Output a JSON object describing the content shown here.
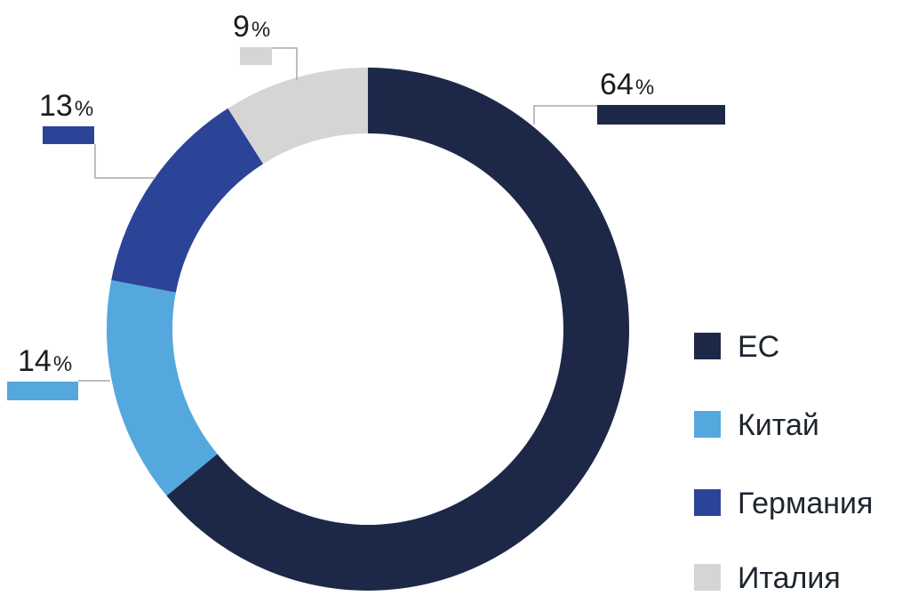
{
  "chart_data": {
    "type": "donut",
    "series": [
      {
        "name": "ЕС",
        "value": 64,
        "label_num": "64",
        "label_sign": "%",
        "color": "#1d2849"
      },
      {
        "name": "Китай",
        "value": 14,
        "label_num": "14",
        "label_sign": "%",
        "color": "#54a8de"
      },
      {
        "name": "Германия",
        "value": 13,
        "label_num": "13",
        "label_sign": "%",
        "color": "#2b4497"
      },
      {
        "name": "Италия",
        "value": 9,
        "label_num": "9",
        "label_sign": "%",
        "color": "#d5d5d5"
      }
    ],
    "legend_position": "bottom-right"
  }
}
